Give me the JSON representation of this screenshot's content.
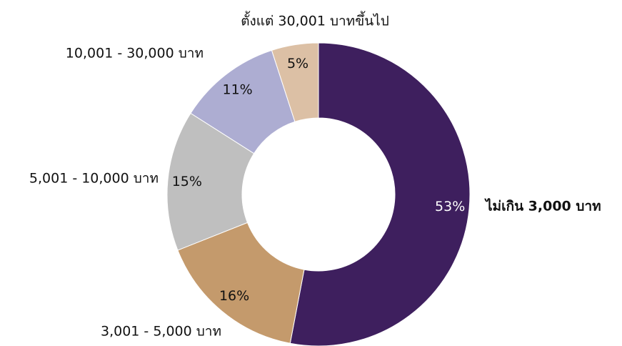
{
  "chart_data": {
    "type": "donut",
    "categories": [
      "ไม่เกิน 3,000 บาท",
      "3,001 - 5,000 บาท",
      "5,001 - 10,000 บาท",
      "10,001 - 30,000 บาท",
      "ตั้งแต่ 30,001 บาทขึ้นไป"
    ],
    "values": [
      53,
      16,
      15,
      11,
      5
    ],
    "value_labels": [
      "53%",
      "16%",
      "15%",
      "11%",
      "5%"
    ],
    "colors": [
      "#3e1f5e",
      "#c49a6c",
      "#bfbfbf",
      "#adadd2",
      "#dcc0a5"
    ]
  }
}
